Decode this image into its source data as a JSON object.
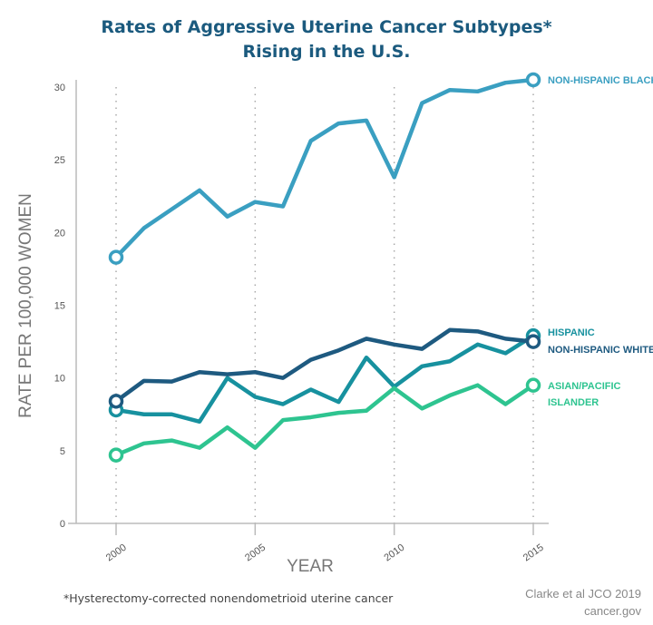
{
  "chart_data": {
    "type": "line",
    "title": [
      "Rates of Aggressive Uterine Cancer Subtypes*",
      "Rising in the U.S."
    ],
    "xlabel": "YEAR",
    "ylabel": "RATE PER 100,000 WOMEN",
    "xlim": [
      2000,
      2015
    ],
    "ylim": [
      0,
      30
    ],
    "xticks": [
      "2000",
      "2005",
      "2010",
      "2015"
    ],
    "yticks": [
      "0",
      "5",
      "10",
      "15",
      "20",
      "25",
      "30"
    ],
    "grid": "vertical dotted at x ticks",
    "x": [
      2000,
      2001,
      2002,
      2003,
      2004,
      2005,
      2006,
      2007,
      2008,
      2009,
      2010,
      2011,
      2012,
      2013,
      2014,
      2015
    ],
    "series": [
      {
        "name": "NON-HISPANIC BLACK",
        "color": "#3a9fc1",
        "label_lines": [
          "NON-HISPANIC BLACK"
        ],
        "values": [
          18.3,
          20.3,
          21.6,
          22.9,
          21.1,
          22.1,
          21.8,
          26.3,
          27.5,
          27.7,
          23.8,
          28.9,
          29.8,
          29.7,
          30.3,
          30.5
        ]
      },
      {
        "name": "HISPANIC",
        "color": "#17919f",
        "label_lines": [
          "HISPANIC"
        ],
        "values": [
          7.8,
          7.5,
          7.5,
          7.0,
          10.0,
          8.7,
          8.2,
          9.2,
          8.35,
          11.4,
          9.4,
          10.8,
          11.15,
          12.3,
          11.7,
          12.9
        ]
      },
      {
        "name": "NON-HISPANIC WHITE",
        "color": "#1e5a80",
        "label_lines": [
          "NON-HISPANIC WHITE"
        ],
        "values": [
          8.4,
          9.8,
          9.75,
          10.4,
          10.25,
          10.4,
          10.0,
          11.25,
          11.9,
          12.7,
          12.3,
          12.0,
          13.3,
          13.2,
          12.7,
          12.5
        ]
      },
      {
        "name": "ASIAN/PACIFIC ISLANDER",
        "color": "#2ec490",
        "label_lines": [
          "ASIAN/PACIFIC",
          "ISLANDER"
        ],
        "values": [
          4.7,
          5.5,
          5.7,
          5.2,
          6.6,
          5.2,
          7.1,
          7.3,
          7.6,
          7.75,
          9.3,
          7.9,
          8.8,
          9.5,
          8.2,
          9.5
        ]
      }
    ],
    "footnote": "*Hysterectomy-corrected nonendometrioid uterine cancer",
    "source": [
      "Clarke et al JCO 2019",
      "cancer.gov"
    ]
  }
}
